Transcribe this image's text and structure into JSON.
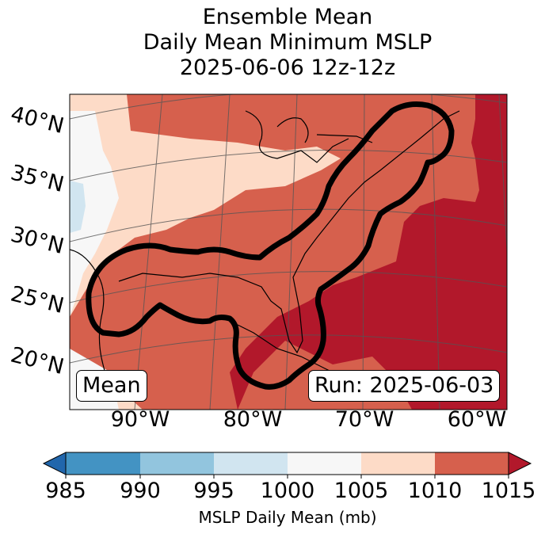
{
  "title": {
    "line1": "Ensemble Mean",
    "line2": "Daily Mean Minimum MSLP",
    "line3": "2025-06-06 12z-12z"
  },
  "map": {
    "lat_labels": [
      "40°N",
      "35°N",
      "30°N",
      "25°N",
      "20°N"
    ],
    "lon_labels": [
      "90°W",
      "80°W",
      "70°W",
      "60°W"
    ],
    "mean_label": "Mean",
    "run_label": "Run: 2025-06-03"
  },
  "colorbar": {
    "ticks": [
      "985",
      "990",
      "995",
      "1000",
      "1005",
      "1010",
      "1015"
    ],
    "label": "MSLP Daily Mean (mb)",
    "colors": [
      "#2166ac",
      "#4393c3",
      "#92c5de",
      "#d1e5f0",
      "#f7f7f7",
      "#fddbc7",
      "#d6604d",
      "#b2182b"
    ]
  },
  "fill_colors": {
    "le_1000": "#d1e5f0",
    "1000_1005": "#f7f7f7",
    "1005_1010": "#fddbc7",
    "1010_1015": "#d6604d",
    "ge_1015": "#b2182b"
  }
}
